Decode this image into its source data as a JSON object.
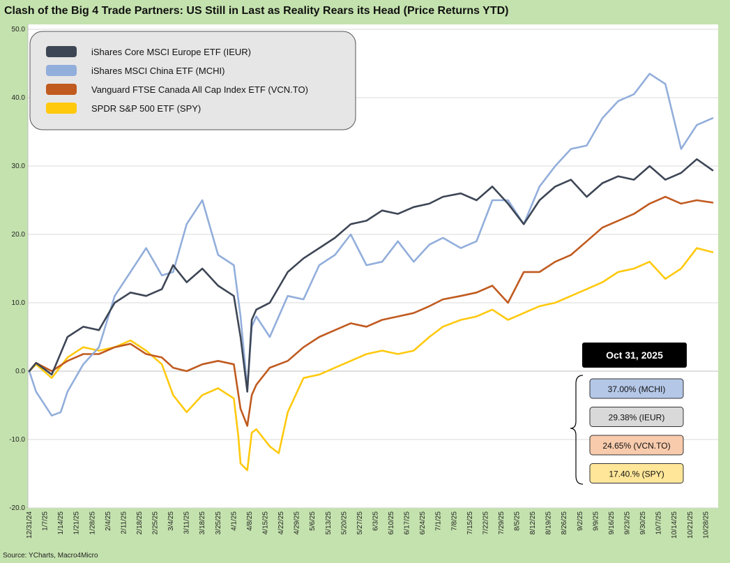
{
  "chart_data": {
    "type": "line",
    "title": "Clash of the Big 4 Trade Partners: US Still in Last as Reality Rears its Head (Price Returns YTD)",
    "source": "Source: YCharts, Macro4Micro",
    "ylim": [
      -20,
      50
    ],
    "yticks": [
      "-20.0",
      "-10.0",
      "0.0",
      "10.0",
      "20.0",
      "30.0",
      "40.0",
      "50.0"
    ],
    "xlim": [
      "12/31/24",
      "10/31/25"
    ],
    "xticks": [
      "12/31/24",
      "1/7/25",
      "1/14/25",
      "1/21/25",
      "1/28/25",
      "2/4/25",
      "2/11/25",
      "2/18/25",
      "2/25/25",
      "3/4/25",
      "3/11/25",
      "3/18/25",
      "3/25/25",
      "4/1/25",
      "4/8/25",
      "4/15/25",
      "4/22/25",
      "4/29/25",
      "5/6/25",
      "5/13/25",
      "5/20/25",
      "5/27/25",
      "6/3/25",
      "6/10/25",
      "6/17/25",
      "6/24/25",
      "7/1/25",
      "7/8/25",
      "7/15/25",
      "7/22/25",
      "7/29/25",
      "8/5/25",
      "8/12/25",
      "8/19/25",
      "8/26/25",
      "9/2/25",
      "9/9/25",
      "9/16/25",
      "9/23/25",
      "9/30/25",
      "10/7/25",
      "10/14/25",
      "10/21/25",
      "10/28/25"
    ],
    "grid": true,
    "legend_position": "top-left",
    "series": [
      {
        "name": "iShares Core MSCI Europe ETF (IEUR)",
        "color": "#3d4655",
        "x": [
          "12/31/24",
          "1/3/25",
          "1/10/25",
          "1/17/25",
          "1/24/25",
          "1/31/25",
          "2/7/25",
          "2/14/25",
          "2/21/25",
          "2/28/25",
          "3/5/25",
          "3/11/25",
          "3/18/25",
          "3/25/25",
          "4/1/25",
          "4/4/25",
          "4/7/25",
          "4/9/25",
          "4/11/25",
          "4/17/25",
          "4/25/25",
          "5/2/25",
          "5/9/25",
          "5/16/25",
          "5/23/25",
          "5/30/25",
          "6/6/25",
          "6/13/25",
          "6/20/25",
          "6/27/25",
          "7/3/25",
          "7/11/25",
          "7/18/25",
          "7/25/25",
          "8/1/25",
          "8/8/25",
          "8/15/25",
          "8/22/25",
          "8/29/25",
          "9/5/25",
          "9/12/25",
          "9/19/25",
          "9/26/25",
          "10/3/25",
          "10/10/25",
          "10/17/25",
          "10/24/25",
          "10/31/25"
        ],
        "y": [
          0.0,
          1.2,
          -0.5,
          5.0,
          6.5,
          6.0,
          10.0,
          11.5,
          11.0,
          12.0,
          15.5,
          13.0,
          15.0,
          12.5,
          11.0,
          5.0,
          -3.0,
          7.5,
          9.0,
          10.0,
          14.5,
          16.5,
          18.0,
          19.5,
          21.5,
          22.0,
          23.5,
          23.0,
          24.0,
          24.5,
          25.5,
          26.0,
          25.0,
          27.0,
          24.5,
          21.5,
          25.0,
          27.0,
          28.0,
          25.5,
          27.5,
          28.5,
          28.0,
          30.0,
          28.0,
          29.0,
          31.0,
          29.38
        ]
      },
      {
        "name": "iShares MSCI China ETF (MCHI)",
        "color": "#92aedb",
        "x": [
          "12/31/24",
          "1/3/25",
          "1/10/25",
          "1/14/25",
          "1/17/25",
          "1/24/25",
          "1/31/25",
          "2/7/25",
          "2/14/25",
          "2/21/25",
          "2/28/25",
          "3/5/25",
          "3/11/25",
          "3/18/25",
          "3/25/25",
          "4/1/25",
          "4/4/25",
          "4/7/25",
          "4/9/25",
          "4/11/25",
          "4/17/25",
          "4/25/25",
          "5/2/25",
          "5/9/25",
          "5/16/25",
          "5/23/25",
          "5/30/25",
          "6/6/25",
          "6/13/25",
          "6/20/25",
          "6/27/25",
          "7/3/25",
          "7/11/25",
          "7/18/25",
          "7/25/25",
          "8/1/25",
          "8/8/25",
          "8/15/25",
          "8/22/25",
          "8/29/25",
          "9/5/25",
          "9/12/25",
          "9/19/25",
          "9/26/25",
          "10/3/25",
          "10/10/25",
          "10/17/25",
          "10/24/25",
          "10/31/25"
        ],
        "y": [
          0.0,
          -3.0,
          -6.5,
          -6.0,
          -3.0,
          1.0,
          3.5,
          11.0,
          14.5,
          18.0,
          14.0,
          14.5,
          21.5,
          25.0,
          17.0,
          15.5,
          8.0,
          -2.5,
          6.5,
          8.0,
          5.0,
          11.0,
          10.5,
          15.5,
          17.0,
          20.0,
          15.5,
          16.0,
          19.0,
          16.0,
          18.5,
          19.5,
          18.0,
          19.0,
          25.0,
          25.0,
          21.5,
          27.0,
          30.0,
          32.5,
          33.0,
          37.0,
          39.5,
          40.5,
          43.5,
          42.0,
          32.5,
          36.0,
          37.0
        ]
      },
      {
        "name": "Vanguard FTSE Canada All Cap Index ETF (VCN.TO)",
        "color": "#c05a1f",
        "x": [
          "12/31/24",
          "1/3/25",
          "1/10/25",
          "1/17/25",
          "1/24/25",
          "1/31/25",
          "2/7/25",
          "2/14/25",
          "2/21/25",
          "2/28/25",
          "3/5/25",
          "3/11/25",
          "3/18/25",
          "3/25/25",
          "4/1/25",
          "4/4/25",
          "4/7/25",
          "4/9/25",
          "4/11/25",
          "4/17/25",
          "4/25/25",
          "5/2/25",
          "5/9/25",
          "5/16/25",
          "5/23/25",
          "5/30/25",
          "6/6/25",
          "6/13/25",
          "6/20/25",
          "6/27/25",
          "7/3/25",
          "7/11/25",
          "7/18/25",
          "7/25/25",
          "8/1/25",
          "8/8/25",
          "8/15/25",
          "8/22/25",
          "8/29/25",
          "9/5/25",
          "9/12/25",
          "9/19/25",
          "9/26/25",
          "10/3/25",
          "10/10/25",
          "10/17/25",
          "10/24/25",
          "10/31/25"
        ],
        "y": [
          0.0,
          1.2,
          0.0,
          1.5,
          2.5,
          2.5,
          3.5,
          4.0,
          2.5,
          2.0,
          0.5,
          0.0,
          1.0,
          1.5,
          1.0,
          -5.5,
          -8.0,
          -3.5,
          -2.0,
          0.5,
          1.5,
          3.5,
          5.0,
          6.0,
          7.0,
          6.5,
          7.5,
          8.0,
          8.5,
          9.5,
          10.5,
          11.0,
          11.5,
          12.5,
          10.0,
          14.5,
          14.5,
          16.0,
          17.0,
          19.0,
          21.0,
          22.0,
          23.0,
          24.5,
          25.5,
          24.5,
          25.0,
          24.65
        ]
      },
      {
        "name": "SPDR S&P 500 ETF (SPY)",
        "color": "#ffc90e",
        "x": [
          "12/31/24",
          "1/3/25",
          "1/10/25",
          "1/17/25",
          "1/24/25",
          "1/31/25",
          "2/7/25",
          "2/14/25",
          "2/21/25",
          "2/28/25",
          "3/5/25",
          "3/11/25",
          "3/18/25",
          "3/25/25",
          "4/1/25",
          "4/3/25",
          "4/4/25",
          "4/7/25",
          "4/9/25",
          "4/11/25",
          "4/17/25",
          "4/21/25",
          "4/25/25",
          "5/2/25",
          "5/9/25",
          "5/16/25",
          "5/23/25",
          "5/30/25",
          "6/6/25",
          "6/13/25",
          "6/20/25",
          "6/27/25",
          "7/3/25",
          "7/11/25",
          "7/18/25",
          "7/25/25",
          "8/1/25",
          "8/8/25",
          "8/15/25",
          "8/22/25",
          "8/29/25",
          "9/5/25",
          "9/12/25",
          "9/19/25",
          "9/26/25",
          "10/3/25",
          "10/10/25",
          "10/17/25",
          "10/24/25",
          "10/31/25"
        ],
        "y": [
          0.0,
          1.0,
          -1.0,
          2.0,
          3.5,
          3.0,
          3.5,
          4.5,
          3.0,
          1.0,
          -3.5,
          -6.0,
          -3.5,
          -2.5,
          -4.0,
          -9.5,
          -13.5,
          -14.5,
          -9.0,
          -8.5,
          -11.0,
          -12.0,
          -6.0,
          -1.0,
          -0.5,
          0.5,
          1.5,
          2.5,
          3.0,
          2.5,
          3.0,
          5.0,
          6.5,
          7.5,
          8.0,
          9.0,
          7.5,
          8.5,
          9.5,
          10.0,
          11.0,
          12.0,
          13.0,
          14.5,
          15.0,
          16.0,
          13.5,
          15.0,
          18.0,
          17.4
        ]
      }
    ],
    "annotation": {
      "date": "Oct 31, 2025",
      "labels": [
        {
          "text": "37.00% (MCHI)",
          "color": "#b4c7e7"
        },
        {
          "text": "29.38% (IEUR)",
          "color": "#d9d9d9"
        },
        {
          "text": "24.65% (VCN.TO)",
          "color": "#f8cbad"
        },
        {
          "text": "17.40.% (SPY)",
          "color": "#ffe699"
        }
      ]
    }
  }
}
